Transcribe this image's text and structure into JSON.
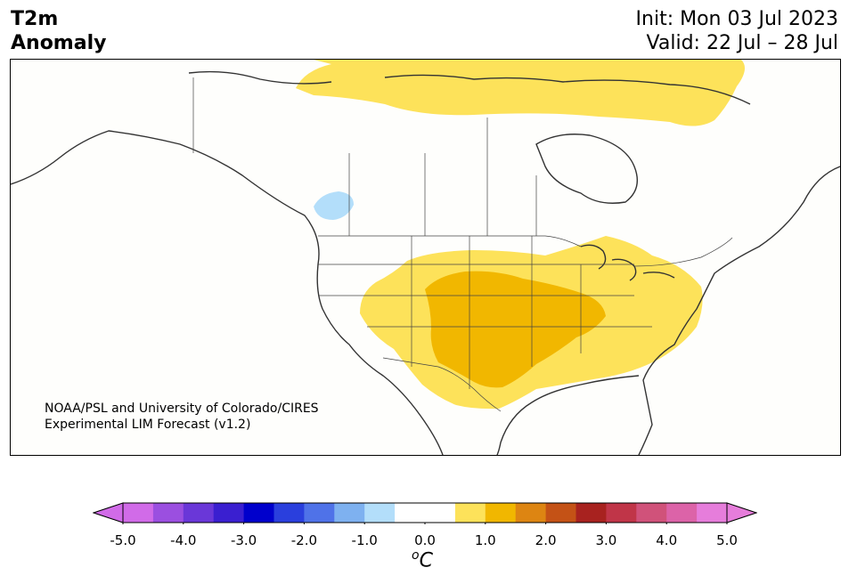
{
  "header": {
    "title_line1": "T2m",
    "title_line2": "Anomaly",
    "init_text": "Init: Mon 03 Jul 2023",
    "valid_text": "Valid: 22 Jul – 28 Jul"
  },
  "credit": {
    "line1": "NOAA/PSL and University of Colorado/CIRES",
    "line2": "Experimental LIM Forecast (v1.2)"
  },
  "colorbar": {
    "unit_main": "C",
    "unit_sup": "o",
    "ticks": [
      "-5.0",
      "-4.0",
      "-3.0",
      "-2.0",
      "-1.0",
      "0.0",
      "1.0",
      "2.0",
      "3.0",
      "4.0",
      "5.0"
    ],
    "colors": [
      "#d16be8",
      "#9b4fe0",
      "#6a37d8",
      "#3a1fd0",
      "#0000cc",
      "#2a3fdd",
      "#4f72e8",
      "#7eb1f0",
      "#b3defa",
      "#ffffff",
      "#ffffff",
      "#fde25a",
      "#f1b700",
      "#dd8512",
      "#c45216",
      "#a8221f",
      "#c03548",
      "#d0527a",
      "#dc63a8",
      "#e67ddb"
    ],
    "under_color": "#d16be8",
    "over_color": "#e67ddb"
  },
  "map": {
    "anomaly_colors": {
      "warm_1": "#fde25a",
      "warm_2": "#f1b700",
      "cool_1": "#b3defa"
    }
  }
}
